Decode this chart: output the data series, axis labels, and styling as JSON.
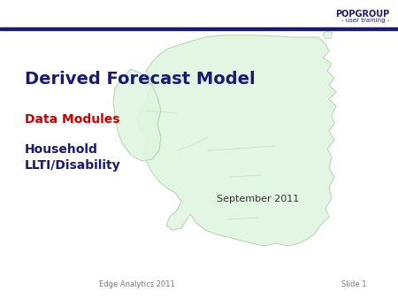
{
  "title_line1": "Derived Forecast Model",
  "subtitle_line1": "Data Modules",
  "subtitle_line2": "Household",
  "subtitle_line3": "LLTI/Disability",
  "date_text": "September 2011",
  "footer_left": "Edge Analytics 2011",
  "footer_right": "Slide 1",
  "header_brand": "POPGROUP",
  "header_sub": "- user training -",
  "bg_color": "#ffffff",
  "header_bar_color": "#1a1a6e",
  "title_color": "#1a1a6e",
  "subtitle1_color": "#cc0000",
  "subtitle23_color": "#1a1a6e",
  "map_fill": "#e0f5e0",
  "map_edge": "#aad0aa",
  "map_region_line": "#bbdabb",
  "header_brand_color": "#1a1a6e",
  "footer_color": "#777777",
  "date_color": "#333333"
}
